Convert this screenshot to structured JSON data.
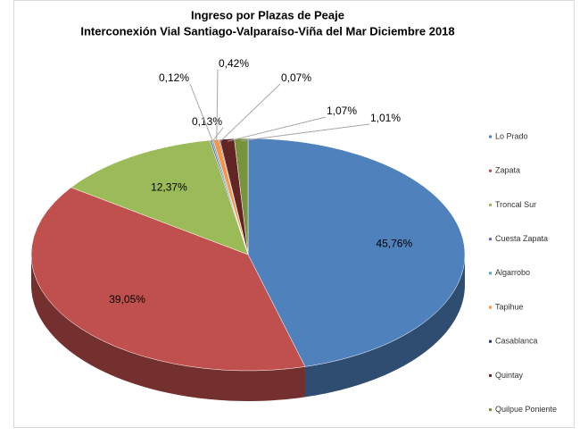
{
  "chart_data": {
    "type": "pie",
    "title": "Ingreso por Plazas de Peaje",
    "subtitle": "Interconexión  Vial Santiago-Valparaíso-Viña  del Mar  Diciembre 2018",
    "categories": [
      "Lo Prado",
      "Zapata",
      "Troncal Sur",
      "Cuesta Zapata",
      "Algarrobo",
      "Tapihue",
      "Casablanca",
      "Quintay",
      "Quilpue Poniente"
    ],
    "values": [
      45.76,
      39.05,
      12.37,
      0.13,
      0.12,
      0.42,
      0.07,
      1.07,
      1.01
    ],
    "value_labels": [
      "45,76%",
      "39,05%",
      "12,37%",
      "0,13%",
      "0,12%",
      "0,42%",
      "0,07%",
      "1,07%",
      "1,01%"
    ],
    "colors": [
      "#4f81bd",
      "#c0504d",
      "#9bbb59",
      "#8064a2",
      "#4bacc6",
      "#f79646",
      "#1f3864",
      "#632523",
      "#77933c"
    ],
    "legend": "right"
  }
}
